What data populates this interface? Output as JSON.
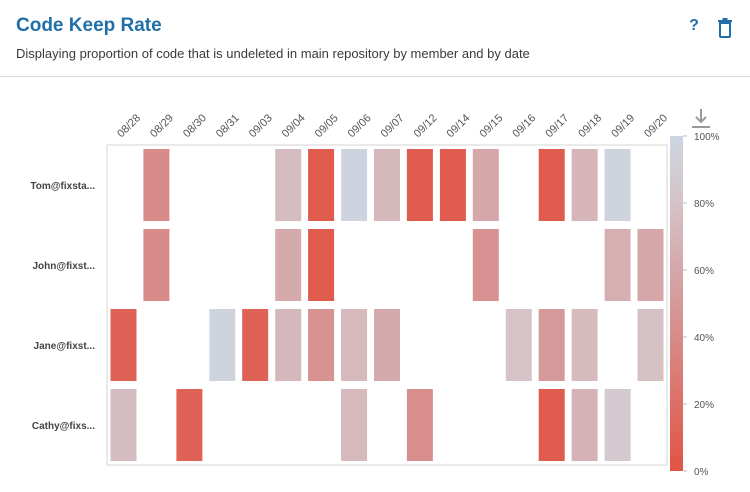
{
  "header": {
    "title": "Code Keep Rate",
    "subtitle": "Displaying proportion of code that is undeleted in main repository by member and by date"
  },
  "icons": {
    "help": "question-mark-icon",
    "delete": "trash-icon",
    "download": "download-icon"
  },
  "colors": {
    "accent": "#1f6fa8",
    "low": "#e05444",
    "mid": "#d5c0c4",
    "high": "#cdd6e2"
  },
  "chart_data": {
    "type": "heatmap",
    "title": "",
    "xlabel": "",
    "ylabel": "",
    "x": [
      "08/28",
      "08/29",
      "08/30",
      "08/31",
      "09/03",
      "09/04",
      "09/05",
      "09/06",
      "09/07",
      "09/12",
      "09/14",
      "09/15",
      "09/16",
      "09/17",
      "09/18",
      "09/19",
      "09/20"
    ],
    "y": [
      "Tom@fixsta...",
      "John@fixst...",
      "Jane@fixst...",
      "Cathy@fixs..."
    ],
    "values": [
      [
        null,
        40,
        null,
        null,
        null,
        75,
        5,
        98,
        72,
        5,
        5,
        60,
        null,
        5,
        70,
        97,
        null
      ],
      [
        null,
        40,
        null,
        null,
        null,
        62,
        5,
        null,
        null,
        null,
        null,
        45,
        null,
        null,
        null,
        66,
        60
      ],
      [
        10,
        null,
        null,
        97,
        10,
        72,
        45,
        73,
        62,
        null,
        null,
        null,
        80,
        50,
        74,
        null,
        78
      ],
      [
        76,
        null,
        10,
        null,
        null,
        null,
        null,
        73,
        null,
        42,
        null,
        null,
        null,
        5,
        68,
        86,
        null
      ]
    ],
    "legend": {
      "ticks": [
        "0%",
        "20%",
        "40%",
        "60%",
        "80%",
        "100%"
      ],
      "range": [
        0,
        100
      ],
      "placement": "right"
    }
  }
}
